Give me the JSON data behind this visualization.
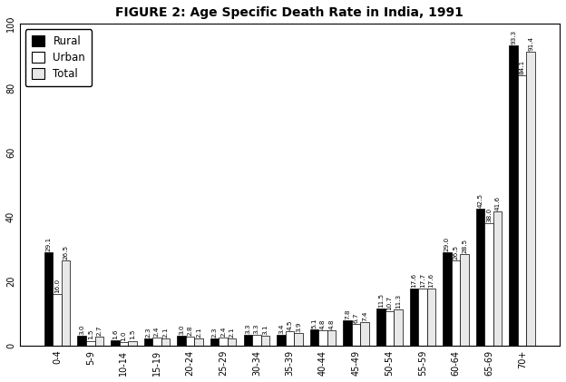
{
  "title": "FIGURE 2: Age Specific Death Rate in India, 1991",
  "categories": [
    "0-4",
    "5-9",
    "10-14",
    "15-19",
    "20-24",
    "25-29",
    "30-34",
    "35-39",
    "40-44",
    "45-49",
    "50-54",
    "55-59",
    "60-64",
    "65-69",
    "70+"
  ],
  "rural": [
    29.1,
    3.0,
    1.6,
    2.3,
    3.0,
    2.3,
    3.3,
    3.4,
    5.1,
    7.8,
    11.5,
    17.6,
    29.0,
    42.5,
    93.3
  ],
  "urban": [
    16.0,
    1.5,
    1.0,
    2.4,
    2.8,
    2.4,
    3.3,
    4.5,
    4.8,
    6.7,
    10.7,
    17.7,
    26.5,
    38.0,
    84.1
  ],
  "total": [
    26.5,
    2.7,
    1.5,
    2.1,
    2.1,
    2.1,
    3.1,
    3.9,
    4.8,
    7.4,
    11.3,
    17.6,
    28.5,
    41.6,
    91.4
  ],
  "rural_labels": [
    "29.1",
    "3.0",
    "1.6",
    "2.3",
    "3.0",
    "2.3",
    "3.3",
    "3.4",
    "5.1",
    "7.8",
    "11.5",
    "17.6",
    "29.0",
    "42.5",
    "93.3"
  ],
  "urban_labels": [
    "16.0",
    "1.5",
    "1.0",
    "2.4",
    "2.8",
    "2.4",
    "3.3",
    "4.5",
    "4.8",
    "6.7",
    "10.7",
    "17.7",
    "26.5",
    "38.0",
    "84.1"
  ],
  "total_labels": [
    "26.5",
    "2.7",
    "1.5",
    "2.1",
    "2.1",
    "2.1",
    "3.1",
    "3.9",
    "4.8",
    "7.4",
    "11.3",
    "17.6",
    "28.5",
    "41.6",
    "91.4"
  ],
  "rural_color": "#000000",
  "urban_color": "#ffffff",
  "total_color": "#e8e8e8",
  "bar_edge_color": "#000000",
  "ylim": [
    0,
    100
  ],
  "yticks": [
    0,
    20,
    40,
    60,
    80,
    100
  ],
  "background_color": "#ffffff",
  "legend_labels": [
    "Rural",
    "Urban",
    "Total"
  ],
  "label_fontsize": 5.2,
  "title_fontsize": 10,
  "tick_fontsize": 7,
  "bar_width": 0.26
}
